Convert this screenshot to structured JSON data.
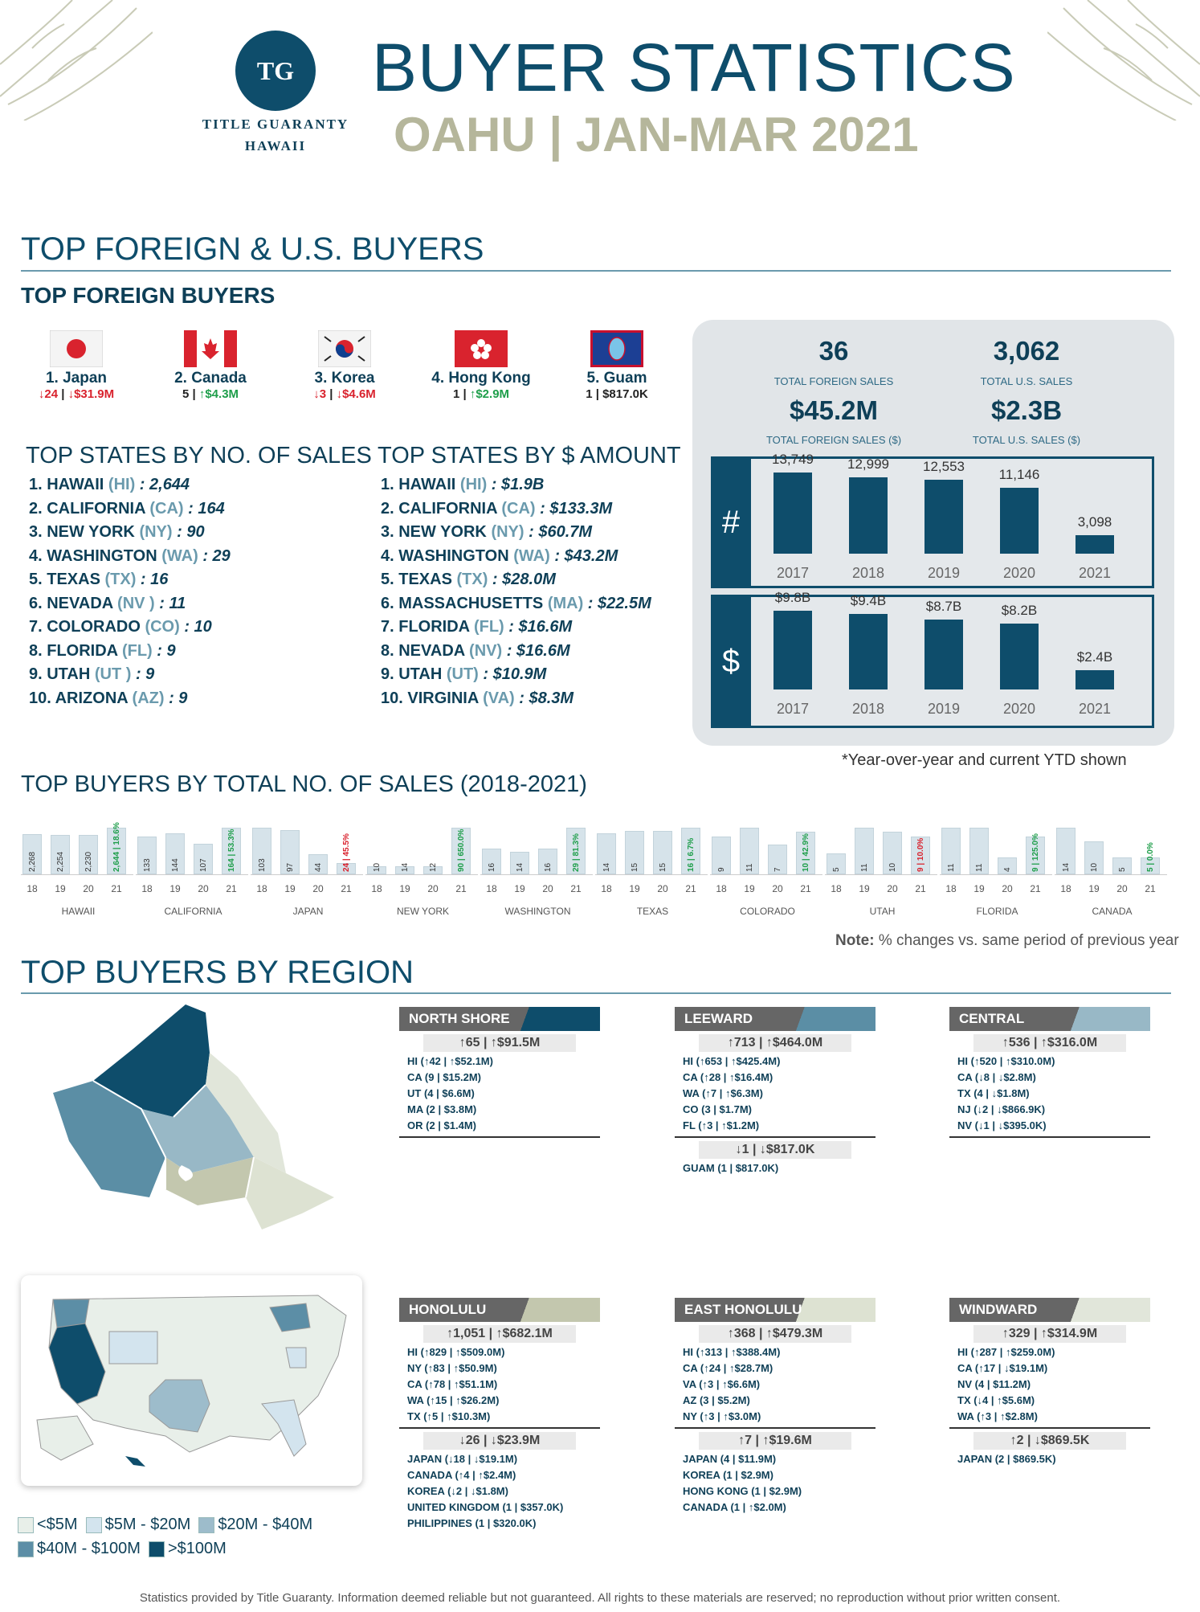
{
  "header": {
    "logo": "TG",
    "brand_line1": "TITLE GUARANTY",
    "brand_line2": "HAWAII",
    "title": "BUYER STATISTICS",
    "subtitle": "OAHU | JAN-MAR 2021"
  },
  "sec1": {
    "title": "TOP FOREIGN & U.S. BUYERS",
    "foreign_title": "TOP FOREIGN BUYERS"
  },
  "foreign": [
    {
      "name": "1. Japan",
      "s1": "↓24",
      "s2": "↓$31.9M",
      "c1": "dn",
      "c2": "dn",
      "sep": " | "
    },
    {
      "name": "2. Canada",
      "s1": "5",
      "s2": "↑$4.3M",
      "c1": "",
      "c2": "up",
      "sep": " | "
    },
    {
      "name": "3. Korea",
      "s1": "↓3",
      "s2": "↓$4.6M",
      "c1": "dn",
      "c2": "dn",
      "sep": " | "
    },
    {
      "name": "4. Hong Kong",
      "s1": "1",
      "s2": "↑$2.9M",
      "c1": "",
      "c2": "up",
      "sep": " | "
    },
    {
      "name": "5. Guam",
      "s1": "1",
      "s2": "$817.0K",
      "c1": "",
      "c2": "",
      "sep": " | "
    }
  ],
  "states_sales_title": "TOP STATES BY NO. OF SALES",
  "states_amount_title": "TOP STATES BY $ AMOUNT",
  "states_sales": [
    {
      "n": "1. HAWAII ",
      "ab": "(HI)",
      "v": " : 2,644"
    },
    {
      "n": "2. CALIFORNIA ",
      "ab": "(CA)",
      "v": " : 164"
    },
    {
      "n": "3. NEW YORK ",
      "ab": "(NY)",
      "v": " : 90"
    },
    {
      "n": "4. WASHINGTON ",
      "ab": "(WA)",
      "v": " : 29"
    },
    {
      "n": "5. TEXAS ",
      "ab": "(TX)",
      "v": " : 16"
    },
    {
      "n": "6. NEVADA ",
      "ab": "(NV )",
      "v": " : 11"
    },
    {
      "n": "7. COLORADO ",
      "ab": "(CO)",
      "v": " : 10"
    },
    {
      "n": "8. FLORIDA ",
      "ab": "(FL)",
      "v": " : 9"
    },
    {
      "n": "9. UTAH ",
      "ab": "(UT )",
      "v": " : 9"
    },
    {
      "n": "10. ARIZONA ",
      "ab": "(AZ)",
      "v": " : 9"
    }
  ],
  "states_amount": [
    {
      "n": "1. HAWAII ",
      "ab": "(HI)",
      "v": " : $1.9B"
    },
    {
      "n": "2. CALIFORNIA ",
      "ab": "(CA)",
      "v": " : $133.3M"
    },
    {
      "n": "3. NEW YORK ",
      "ab": "(NY)",
      "v": " : $60.7M"
    },
    {
      "n": "4. WASHINGTON ",
      "ab": "(WA)",
      "v": " : $43.2M"
    },
    {
      "n": "5. TEXAS ",
      "ab": "(TX)",
      "v": " : $28.0M"
    },
    {
      "n": "6. MASSACHUSETTS ",
      "ab": "(MA)",
      "v": " : $22.5M"
    },
    {
      "n": "7. FLORIDA ",
      "ab": "(FL)",
      "v": " : $16.6M"
    },
    {
      "n": "8. NEVADA ",
      "ab": "(NV)",
      "v": " : $16.6M"
    },
    {
      "n": "9. UTAH ",
      "ab": "(UT)",
      "v": " : $10.9M"
    },
    {
      "n": "10. VIRGINIA ",
      "ab": "(VA)",
      "v": " : $8.3M"
    }
  ],
  "totals": {
    "foreign_sales": "36",
    "foreign_sales_label": "TOTAL FOREIGN SALES",
    "us_sales": "3,062",
    "us_sales_label": "TOTAL U.S. SALES",
    "foreign_amt": "$45.2M",
    "foreign_amt_label": "TOTAL FOREIGN SALES ($)",
    "us_amt": "$2.3B",
    "us_amt_label": "TOTAL U.S. SALES ($)"
  },
  "chart_data": [
    {
      "type": "bar",
      "symbol": "#",
      "categories": [
        "2017",
        "2018",
        "2019",
        "2020",
        "2021"
      ],
      "values": [
        13749,
        12999,
        12553,
        11146,
        3098
      ],
      "labels": [
        "13,749",
        "12,999",
        "12,553",
        "11,146",
        "3,098"
      ]
    },
    {
      "type": "bar",
      "symbol": "$",
      "categories": [
        "2017",
        "2018",
        "2019",
        "2020",
        "2021"
      ],
      "values": [
        9.8,
        9.4,
        8.7,
        8.2,
        2.4
      ],
      "labels": [
        "$9.8B",
        "$9.4B",
        "$8.7B",
        "$8.2B",
        "$2.4B"
      ]
    },
    {
      "type": "bar",
      "title": "TOP BUYERS BY TOTAL NO. OF SALES (2018-2021)",
      "groups": [
        {
          "name": "HAWAII",
          "values": [
            2268,
            2254,
            2230,
            2644
          ],
          "labels": [
            "2,268",
            "2,254",
            "2,230",
            "2,644 | 18.6%"
          ],
          "dir": "up"
        },
        {
          "name": "CALIFORNIA",
          "values": [
            133,
            144,
            107,
            164
          ],
          "labels": [
            "133",
            "144",
            "107",
            "164 | 53.3%"
          ],
          "dir": "up"
        },
        {
          "name": "JAPAN",
          "values": [
            103,
            97,
            44,
            24
          ],
          "labels": [
            "103",
            "97",
            "44",
            "24 | 45.5%"
          ],
          "dir": "dn"
        },
        {
          "name": "NEW YORK",
          "values": [
            10,
            14,
            12,
            90
          ],
          "labels": [
            "10",
            "14",
            "12",
            "90 | 650.0%"
          ],
          "dir": "up"
        },
        {
          "name": "WASHINGTON",
          "values": [
            16,
            14,
            16,
            29
          ],
          "labels": [
            "16",
            "14",
            "16",
            "29 | 81.3%"
          ],
          "dir": "up"
        },
        {
          "name": "TEXAS",
          "values": [
            14,
            15,
            15,
            16
          ],
          "labels": [
            "14",
            "15",
            "15",
            "16 | 6.7%"
          ],
          "dir": "up"
        },
        {
          "name": "COLORADO",
          "values": [
            9,
            11,
            7,
            10
          ],
          "labels": [
            "9",
            "11",
            "7",
            "10 | 42.9%"
          ],
          "dir": "up"
        },
        {
          "name": "UTAH",
          "values": [
            5,
            11,
            10,
            9
          ],
          "labels": [
            "5",
            "11",
            "10",
            "9 | 10.0%"
          ],
          "dir": "dn"
        },
        {
          "name": "FLORIDA",
          "values": [
            11,
            11,
            4,
            9
          ],
          "labels": [
            "11",
            "11",
            "4",
            "9 | 125.0%"
          ],
          "dir": "up"
        },
        {
          "name": "CANADA",
          "values": [
            14,
            10,
            5,
            5
          ],
          "labels": [
            "14",
            "10",
            "5",
            "5 | 0.0%"
          ],
          "dir": "up"
        }
      ],
      "years": [
        "18",
        "19",
        "20",
        "21"
      ]
    }
  ],
  "yoy_note": "*Year-over-year and current YTD shown",
  "note_bold": "Note:",
  "note_text": " % changes vs. same period of previous year",
  "sec2": {
    "title": "TOP BUYERS BY REGION"
  },
  "regions": [
    {
      "name": "NORTH SHORE",
      "color": "#0e4d6b",
      "total": "↑65 | ↑$91.5M",
      "rows": [
        "HI (↑42 | ↑$52.1M)",
        "CA (9 | $15.2M)",
        "UT (4 | $6.6M)",
        "MA (2 | $3.8M)",
        "OR (2 | $1.4M)"
      ],
      "ftotal": "",
      "frows": []
    },
    {
      "name": "LEEWARD",
      "color": "#5b8ea5",
      "total": "↑713 | ↑$464.0M",
      "rows": [
        "HI (↑653 | ↑$425.4M)",
        "CA (↑28 | ↑$16.4M)",
        "WA (↑7 | ↑$6.3M)",
        "CO (3 | $1.7M)",
        "FL (↑3 | ↑$1.2M)"
      ],
      "ftotal": "↓1 | ↓$817.0K",
      "frows": [
        "GUAM (1 | $817.0K)"
      ]
    },
    {
      "name": "CENTRAL",
      "color": "#98b8c6",
      "total": "↑536 | ↑$316.0M",
      "rows": [
        "HI (↑520 | ↑$310.0M)",
        "CA (↓8 | ↓$2.8M)",
        "TX (4 | ↓$1.8M)",
        "NJ (↓2 | ↓$866.9K)",
        "NV (↓1 | ↓$395.0K)"
      ],
      "ftotal": "",
      "frows": []
    },
    {
      "name": "HONOLULU",
      "color": "#c3c7ae",
      "total": "↑1,051 | ↑$682.1M",
      "rows": [
        "HI (↑829 | ↑$509.0M)",
        "NY (↑83 | ↑$50.9M)",
        "CA (↑78 | ↑$51.1M)",
        "WA (↑15 | ↑$26.2M)",
        "TX (↑5 | ↑$10.3M)"
      ],
      "ftotal": "↓26 | ↓$23.9M",
      "frows": [
        "JAPAN (↓18 | ↓$19.1M)",
        "CANADA (↑4 | ↑$2.4M)",
        "KOREA (↓2 | ↓$1.8M)",
        "UNITED KINGDOM (1 | $357.0K)",
        "PHILIPPINES (1 | $320.0K)"
      ]
    },
    {
      "name": "EAST HONOLULU",
      "color": "#dde2d2",
      "total": "↑368 | ↑$479.3M",
      "rows": [
        "HI (↑313 | ↑$388.4M)",
        "CA (↑24 | ↑$28.7M)",
        "VA (↑3 | ↑$6.6M)",
        "AZ (3 | $5.2M)",
        "NY (↑3 | ↑$3.0M)"
      ],
      "ftotal": "↑7 | ↑$19.6M",
      "frows": [
        "JAPAN (4 | $11.9M)",
        "KOREA (1 | $2.9M)",
        "HONG KONG (1 | $2.9M)",
        "CANADA (1 | ↑$2.0M)"
      ]
    },
    {
      "name": "WINDWARD",
      "color": "#e1e6da",
      "total": "↑329 | ↑$314.9M",
      "rows": [
        "HI (↑287 | ↑$259.0M)",
        "CA (↑17 | ↓$19.1M)",
        "NV (4 | $11.2M)",
        "TX (↓4 | ↑$5.6M)",
        "WA (↑3 | ↑$2.8M)"
      ],
      "ftotal": "↑2 | ↓$869.5K",
      "frows": [
        "JAPAN (2 | $869.5K)"
      ]
    }
  ],
  "legend": [
    {
      "label": "<$5M",
      "color": "#e8efe9"
    },
    {
      "label": "$5M - $20M",
      "color": "#d3e4ee"
    },
    {
      "label": "$20M - $40M",
      "color": "#9dbccb"
    },
    {
      "label": "$40M - $100M",
      "color": "#5c8ea6"
    },
    {
      "label": ">$100M",
      "color": "#0e4d6b"
    }
  ],
  "footer": "Statistics provided by Title Guaranty. Information deemed reliable but not guaranteed. All rights to these materials are reserved; no reproduction without prior written consent."
}
